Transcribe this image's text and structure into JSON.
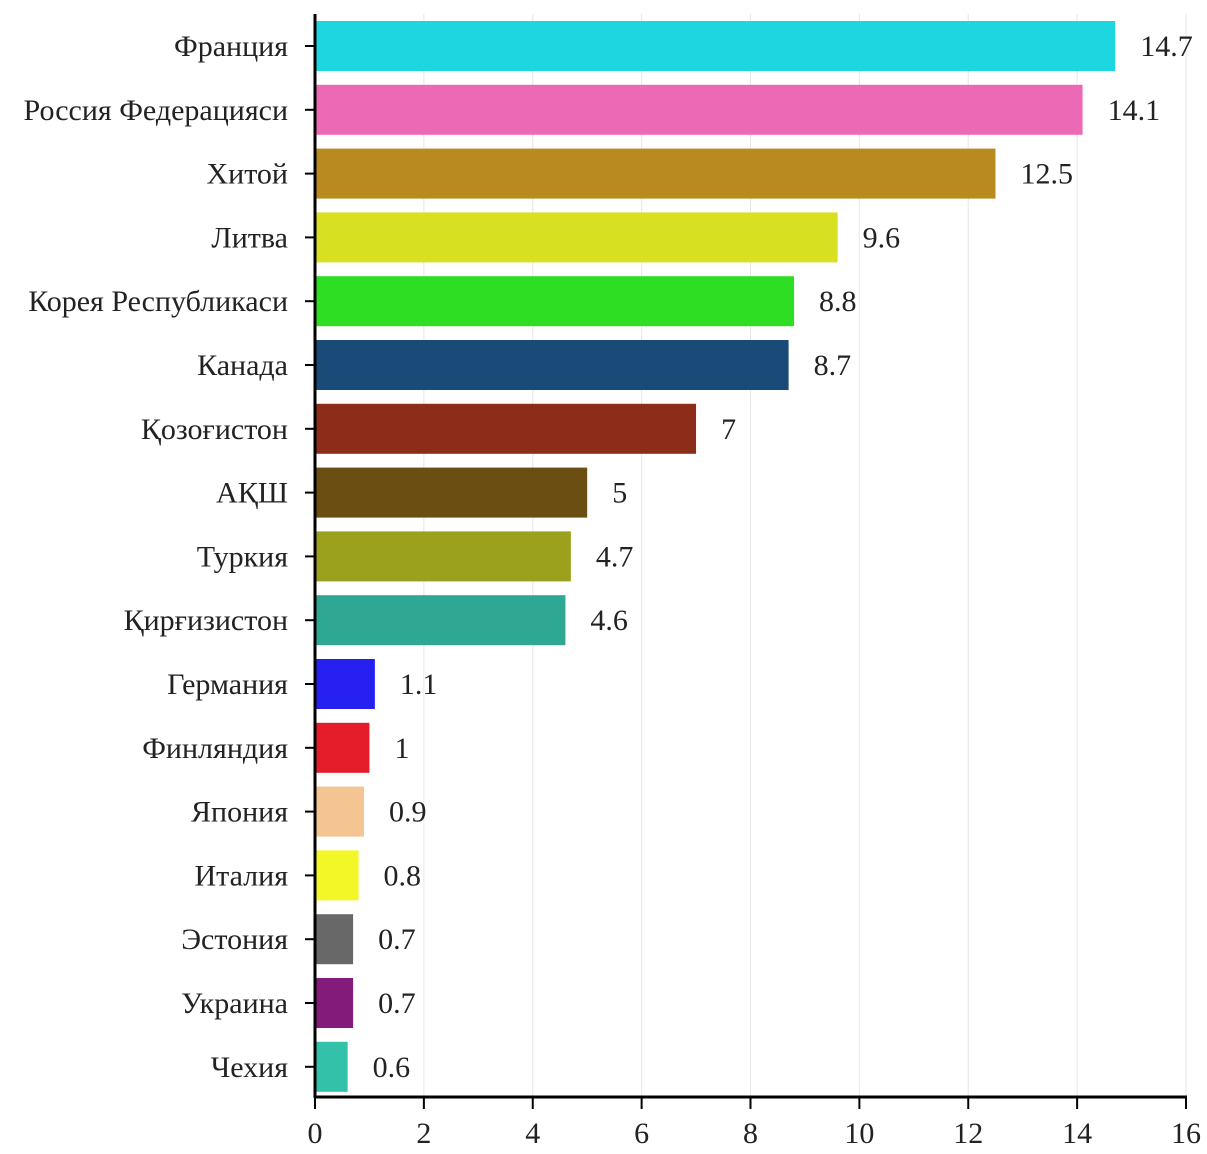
{
  "chart_data": {
    "type": "bar",
    "orientation": "horizontal",
    "title": "",
    "xlabel": "",
    "ylabel": "",
    "xlim": [
      0,
      16
    ],
    "x_ticks": [
      "0",
      "2",
      "4",
      "6",
      "8",
      "10",
      "12",
      "14",
      "16"
    ],
    "grid": true,
    "legend": "none",
    "categories": [
      "Франция",
      "Россия Федерацияси",
      "Хитой",
      "Литва",
      "Корея Республикаси",
      "Канада",
      "Қозоғистон",
      "АҚШ",
      "Туркия",
      "Қирғизистон",
      "Германия",
      "Финляндия",
      "Япония",
      "Италия",
      "Эстония",
      "Украина",
      "Чехия"
    ],
    "values": [
      14.7,
      14.1,
      12.5,
      9.6,
      8.8,
      8.7,
      7,
      5,
      4.7,
      4.6,
      1.1,
      1,
      0.9,
      0.8,
      0.7,
      0.7,
      0.6
    ],
    "value_labels": [
      "14.7",
      "14.1",
      "12.5",
      "9.6",
      "8.8",
      "8.7",
      "7",
      "5",
      "4.7",
      "4.6",
      "1.1",
      "1",
      "0.9",
      "0.8",
      "0.7",
      "0.7",
      "0.6"
    ],
    "colors": [
      "#1dd6df",
      "#ec6ab5",
      "#b88a20",
      "#d8e022",
      "#2ede22",
      "#1a4a78",
      "#8c2d19",
      "#6a4e12",
      "#9ba11c",
      "#2ea892",
      "#2621f0",
      "#e51d2a",
      "#f4c592",
      "#f3f728",
      "#686868",
      "#821b79",
      "#33c1aa"
    ]
  }
}
